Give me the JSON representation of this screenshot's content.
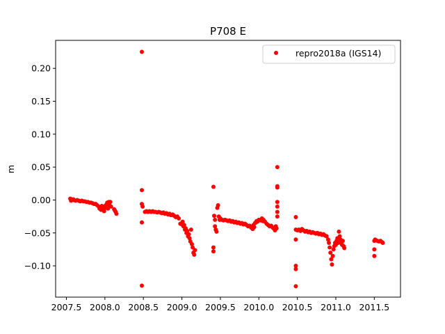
{
  "chart_data": {
    "type": "scatter",
    "title": "P708 E",
    "xlabel": "",
    "ylabel": "m",
    "xlim": [
      2007.36,
      2011.84
    ],
    "ylim": [
      -0.1475,
      0.2425
    ],
    "xticks": [
      2007.5,
      2008.0,
      2008.5,
      2009.0,
      2009.5,
      2010.0,
      2010.5,
      2011.0,
      2011.5
    ],
    "xtick_labels": [
      "2007.5",
      "2008.0",
      "2008.5",
      "2009.0",
      "2009.5",
      "2010.0",
      "2010.5",
      "2011.0",
      "2011.5"
    ],
    "yticks": [
      0.2,
      0.15,
      0.1,
      0.05,
      0.0,
      -0.05,
      -0.1
    ],
    "ytick_labels": [
      "0.20",
      "0.15",
      "0.10",
      "0.05",
      "0.00",
      "−0.05",
      "−0.10"
    ],
    "grid": false,
    "legend_position": "top-right",
    "series": [
      {
        "name": "repro2018a (IGS14)",
        "color": "#ff0000",
        "marker": "circle",
        "points": [
          [
            2007.55,
            0.002
          ],
          [
            2007.56,
            -0.001
          ],
          [
            2007.57,
            0.001
          ],
          [
            2007.58,
            0.0
          ],
          [
            2007.59,
            0.001
          ],
          [
            2007.6,
            0.0
          ],
          [
            2007.62,
            -0.001
          ],
          [
            2007.64,
            0.0
          ],
          [
            2007.66,
            -0.001
          ],
          [
            2007.68,
            -0.002
          ],
          [
            2007.7,
            -0.001
          ],
          [
            2007.72,
            -0.002
          ],
          [
            2007.74,
            -0.002
          ],
          [
            2007.76,
            -0.003
          ],
          [
            2007.78,
            -0.003
          ],
          [
            2007.8,
            -0.004
          ],
          [
            2007.82,
            -0.004
          ],
          [
            2007.84,
            -0.005
          ],
          [
            2007.86,
            -0.006
          ],
          [
            2007.88,
            -0.006
          ],
          [
            2007.9,
            -0.008
          ],
          [
            2007.92,
            -0.01
          ],
          [
            2007.93,
            -0.013
          ],
          [
            2007.94,
            -0.012
          ],
          [
            2007.95,
            -0.015
          ],
          [
            2007.96,
            -0.009
          ],
          [
            2007.97,
            -0.014
          ],
          [
            2007.98,
            -0.01
          ],
          [
            2007.99,
            -0.017
          ],
          [
            2008.0,
            -0.012
          ],
          [
            2008.01,
            -0.008
          ],
          [
            2008.02,
            -0.012
          ],
          [
            2008.03,
            -0.004
          ],
          [
            2008.04,
            -0.013
          ],
          [
            2008.05,
            -0.003
          ],
          [
            2008.06,
            -0.008
          ],
          [
            2008.07,
            -0.003
          ],
          [
            2008.08,
            -0.01
          ],
          [
            2008.12,
            -0.014
          ],
          [
            2008.13,
            -0.016
          ],
          [
            2008.14,
            -0.018
          ],
          [
            2008.15,
            -0.021
          ],
          [
            2008.48,
            0.225
          ],
          [
            2008.48,
            0.015
          ],
          [
            2008.48,
            -0.006
          ],
          [
            2008.48,
            -0.034
          ],
          [
            2008.48,
            -0.13
          ],
          [
            2008.49,
            -0.01
          ],
          [
            2008.52,
            -0.018
          ],
          [
            2008.54,
            -0.017
          ],
          [
            2008.56,
            -0.018
          ],
          [
            2008.58,
            -0.017
          ],
          [
            2008.6,
            -0.018
          ],
          [
            2008.62,
            -0.017
          ],
          [
            2008.64,
            -0.018
          ],
          [
            2008.66,
            -0.018
          ],
          [
            2008.68,
            -0.019
          ],
          [
            2008.7,
            -0.018
          ],
          [
            2008.72,
            -0.019
          ],
          [
            2008.74,
            -0.02
          ],
          [
            2008.76,
            -0.019
          ],
          [
            2008.78,
            -0.021
          ],
          [
            2008.8,
            -0.02
          ],
          [
            2008.82,
            -0.022
          ],
          [
            2008.84,
            -0.021
          ],
          [
            2008.86,
            -0.023
          ],
          [
            2008.88,
            -0.022
          ],
          [
            2008.9,
            -0.024
          ],
          [
            2008.92,
            -0.026
          ],
          [
            2008.94,
            -0.025
          ],
          [
            2008.96,
            -0.028
          ],
          [
            2008.98,
            -0.036
          ],
          [
            2009.0,
            -0.037
          ],
          [
            2009.01,
            -0.033
          ],
          [
            2009.02,
            -0.04
          ],
          [
            2009.03,
            -0.038
          ],
          [
            2009.04,
            -0.045
          ],
          [
            2009.05,
            -0.043
          ],
          [
            2009.06,
            -0.05
          ],
          [
            2009.07,
            -0.047
          ],
          [
            2009.08,
            -0.055
          ],
          [
            2009.09,
            -0.052
          ],
          [
            2009.1,
            -0.058
          ],
          [
            2009.11,
            -0.063
          ],
          [
            2009.12,
            -0.045
          ],
          [
            2009.13,
            -0.067
          ],
          [
            2009.14,
            -0.072
          ],
          [
            2009.15,
            -0.08
          ],
          [
            2009.16,
            -0.083
          ],
          [
            2009.17,
            -0.076
          ],
          [
            2009.41,
            0.02
          ],
          [
            2009.41,
            -0.072
          ],
          [
            2009.41,
            -0.078
          ],
          [
            2009.42,
            -0.024
          ],
          [
            2009.43,
            -0.03
          ],
          [
            2009.43,
            -0.04
          ],
          [
            2009.44,
            -0.045
          ],
          [
            2009.45,
            -0.048
          ],
          [
            2009.46,
            -0.012
          ],
          [
            2009.47,
            -0.008
          ],
          [
            2009.48,
            -0.025
          ],
          [
            2009.49,
            -0.03
          ],
          [
            2009.5,
            -0.028
          ],
          [
            2009.52,
            -0.03
          ],
          [
            2009.54,
            -0.031
          ],
          [
            2009.56,
            -0.03
          ],
          [
            2009.58,
            -0.031
          ],
          [
            2009.6,
            -0.032
          ],
          [
            2009.62,
            -0.031
          ],
          [
            2009.64,
            -0.033
          ],
          [
            2009.66,
            -0.032
          ],
          [
            2009.68,
            -0.034
          ],
          [
            2009.7,
            -0.033
          ],
          [
            2009.72,
            -0.035
          ],
          [
            2009.74,
            -0.034
          ],
          [
            2009.76,
            -0.036
          ],
          [
            2009.78,
            -0.035
          ],
          [
            2009.8,
            -0.037
          ],
          [
            2009.82,
            -0.036
          ],
          [
            2009.84,
            -0.038
          ],
          [
            2009.86,
            -0.04
          ],
          [
            2009.88,
            -0.039
          ],
          [
            2009.9,
            -0.042
          ],
          [
            2009.92,
            -0.044
          ],
          [
            2009.93,
            -0.038
          ],
          [
            2009.94,
            -0.041
          ],
          [
            2009.95,
            -0.035
          ],
          [
            2009.96,
            -0.034
          ],
          [
            2009.97,
            -0.032
          ],
          [
            2009.98,
            -0.033
          ],
          [
            2010.0,
            -0.03
          ],
          [
            2010.02,
            -0.031
          ],
          [
            2010.04,
            -0.028
          ],
          [
            2010.05,
            -0.032
          ],
          [
            2010.06,
            -0.03
          ],
          [
            2010.08,
            -0.033
          ],
          [
            2010.1,
            -0.036
          ],
          [
            2010.12,
            -0.038
          ],
          [
            2010.14,
            -0.04
          ],
          [
            2010.16,
            -0.039
          ],
          [
            2010.18,
            -0.042
          ],
          [
            2010.2,
            -0.044
          ],
          [
            2010.21,
            -0.046
          ],
          [
            2010.22,
            -0.04
          ],
          [
            2010.23,
            -0.043
          ],
          [
            2010.24,
            0.05
          ],
          [
            2010.24,
            0.021
          ],
          [
            2010.24,
            0.019
          ],
          [
            2010.24,
            -0.003
          ],
          [
            2010.24,
            -0.01
          ],
          [
            2010.24,
            -0.018
          ],
          [
            2010.24,
            -0.025
          ],
          [
            2010.48,
            -0.026
          ],
          [
            2010.48,
            -0.045
          ],
          [
            2010.48,
            -0.06
          ],
          [
            2010.48,
            -0.1
          ],
          [
            2010.48,
            -0.105
          ],
          [
            2010.48,
            -0.131
          ],
          [
            2010.5,
            -0.046
          ],
          [
            2010.52,
            -0.045
          ],
          [
            2010.54,
            -0.047
          ],
          [
            2010.56,
            -0.044
          ],
          [
            2010.58,
            -0.046
          ],
          [
            2010.6,
            -0.048
          ],
          [
            2010.62,
            -0.047
          ],
          [
            2010.64,
            -0.049
          ],
          [
            2010.66,
            -0.048
          ],
          [
            2010.68,
            -0.05
          ],
          [
            2010.7,
            -0.049
          ],
          [
            2010.72,
            -0.05
          ],
          [
            2010.74,
            -0.051
          ],
          [
            2010.76,
            -0.05
          ],
          [
            2010.78,
            -0.052
          ],
          [
            2010.8,
            -0.051
          ],
          [
            2010.82,
            -0.053
          ],
          [
            2010.84,
            -0.052
          ],
          [
            2010.86,
            -0.054
          ],
          [
            2010.88,
            -0.055
          ],
          [
            2010.9,
            -0.06
          ],
          [
            2010.91,
            -0.065
          ],
          [
            2010.92,
            -0.072
          ],
          [
            2010.93,
            -0.08
          ],
          [
            2010.94,
            -0.09
          ],
          [
            2010.95,
            -0.098
          ],
          [
            2010.96,
            -0.085
          ],
          [
            2010.97,
            -0.075
          ],
          [
            2010.98,
            -0.07
          ],
          [
            2010.99,
            -0.065
          ],
          [
            2011.0,
            -0.068
          ],
          [
            2011.01,
            -0.062
          ],
          [
            2011.02,
            -0.058
          ],
          [
            2011.03,
            -0.065
          ],
          [
            2011.04,
            -0.048
          ],
          [
            2011.05,
            -0.055
          ],
          [
            2011.06,
            -0.06
          ],
          [
            2011.07,
            -0.065
          ],
          [
            2011.08,
            -0.068
          ],
          [
            2011.09,
            -0.062
          ],
          [
            2011.1,
            -0.07
          ],
          [
            2011.11,
            -0.073
          ],
          [
            2011.5,
            -0.062
          ],
          [
            2011.5,
            -0.075
          ],
          [
            2011.5,
            -0.085
          ],
          [
            2011.51,
            -0.06
          ],
          [
            2011.52,
            -0.061
          ],
          [
            2011.54,
            -0.062
          ],
          [
            2011.56,
            -0.063
          ],
          [
            2011.58,
            -0.062
          ],
          [
            2011.6,
            -0.064
          ],
          [
            2011.61,
            -0.065
          ]
        ]
      }
    ]
  }
}
